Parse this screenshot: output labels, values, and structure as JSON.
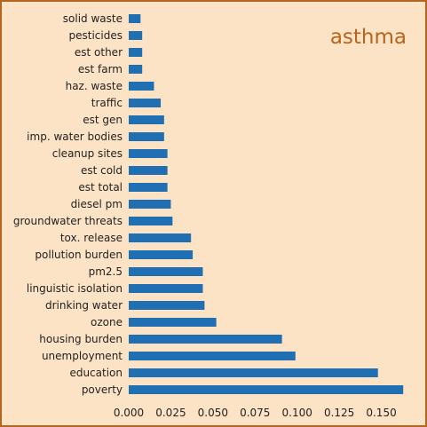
{
  "colors": {
    "background": "#fde3c5",
    "border": "#b5651d",
    "bar": "#1f6fb2",
    "title": "#b5651d",
    "text": "#222222"
  },
  "chart_data": {
    "type": "bar",
    "orientation": "horizontal",
    "title": "asthma",
    "xlabel": "",
    "ylabel": "",
    "xlim": [
      0,
      0.165
    ],
    "xticks": [
      "0.000",
      "0.025",
      "0.050",
      "0.075",
      "0.100",
      "0.125",
      "0.150"
    ],
    "grid": false,
    "legend": "none",
    "categories": [
      "poverty",
      "education",
      "unemployment",
      "housing burden",
      "ozone",
      "drinking water",
      "linguistic isolation",
      "pm2.5",
      "pollution burden",
      "tox. release",
      "groundwater threats",
      "diesel pm",
      "est total",
      "est cold",
      "cleanup sites",
      "imp. water bodies",
      "est gen",
      "traffic",
      "haz. waste",
      "est farm",
      "est other",
      "pesticides",
      "solid waste"
    ],
    "values": [
      0.163,
      0.148,
      0.099,
      0.091,
      0.052,
      0.045,
      0.044,
      0.044,
      0.038,
      0.037,
      0.026,
      0.025,
      0.023,
      0.023,
      0.023,
      0.021,
      0.021,
      0.019,
      0.015,
      0.008,
      0.008,
      0.008,
      0.007
    ]
  }
}
